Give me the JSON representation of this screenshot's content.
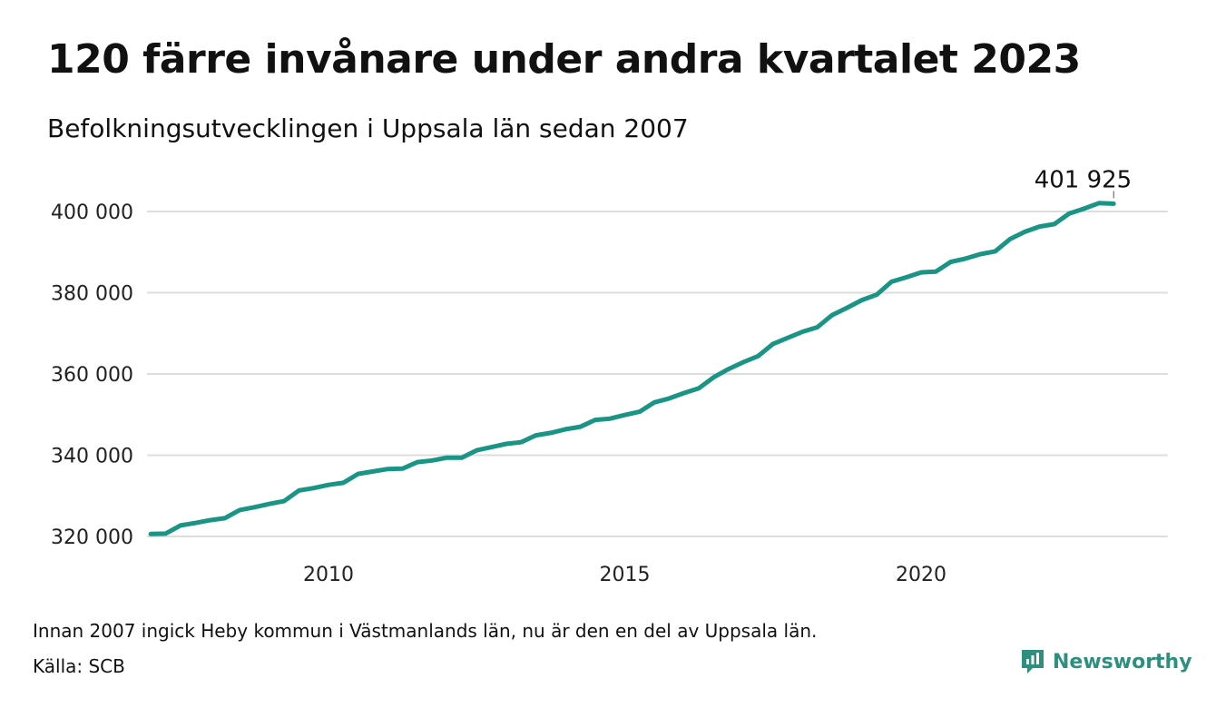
{
  "header": {
    "title": "120 färre invånare under andra kvartalet 2023",
    "subtitle": "Befolkningsutvecklingen i Uppsala län sedan 2007"
  },
  "footer": {
    "note": "Innan 2007 ingick Heby kommun i Västmanlands län, nu är den en del av Uppsala län.",
    "source": "Källa: SCB",
    "brand": "Newsworthy"
  },
  "colors": {
    "line": "#1a9485",
    "grid": "#dddddd",
    "brand": "#2f8f7e"
  },
  "chart_data": {
    "type": "line",
    "title": "120 färre invånare under andra kvartalet 2023",
    "subtitle": "Befolkningsutvecklingen i Uppsala län sedan 2007",
    "xlabel": "",
    "ylabel": "",
    "grid": true,
    "xlim": [
      2007.0,
      2023.5
    ],
    "ylim": [
      320000,
      402000
    ],
    "x_ticks": [
      2010,
      2015,
      2020
    ],
    "x_tick_labels": [
      "2010",
      "2015",
      "2020"
    ],
    "y_ticks": [
      320000,
      340000,
      360000,
      380000,
      400000
    ],
    "y_tick_labels": [
      "320 000",
      "340 000",
      "360 000",
      "380 000",
      "400 000"
    ],
    "annotation": {
      "x": 2023.25,
      "y": 401925,
      "label": "401 925"
    },
    "series": [
      {
        "x": [
          2007.0,
          2007.25,
          2007.5,
          2007.75,
          2008.0,
          2008.25,
          2008.5,
          2008.75,
          2009.0,
          2009.25,
          2009.5,
          2009.75,
          2010.0,
          2010.25,
          2010.5,
          2010.75,
          2011.0,
          2011.25,
          2011.5,
          2011.75,
          2012.0,
          2012.25,
          2012.5,
          2012.75,
          2013.0,
          2013.25,
          2013.5,
          2013.75,
          2014.0,
          2014.25,
          2014.5,
          2014.75,
          2015.0,
          2015.25,
          2015.5,
          2015.75,
          2016.0,
          2016.25,
          2016.5,
          2016.75,
          2017.0,
          2017.25,
          2017.5,
          2017.75,
          2018.0,
          2018.25,
          2018.5,
          2018.75,
          2019.0,
          2019.25,
          2019.5,
          2019.75,
          2020.0,
          2020.25,
          2020.5,
          2020.75,
          2021.0,
          2021.25,
          2021.5,
          2021.75,
          2022.0,
          2022.25,
          2022.5,
          2022.75,
          2023.0,
          2023.25
        ],
        "values": [
          320600,
          320700,
          322700,
          323300,
          324000,
          324500,
          326500,
          327200,
          328000,
          328700,
          331300,
          331900,
          332700,
          333200,
          335400,
          336000,
          336600,
          336700,
          338300,
          338700,
          339400,
          339400,
          341200,
          342000,
          342800,
          343200,
          344900,
          345500,
          346400,
          347000,
          348700,
          349000,
          349900,
          350700,
          353000,
          354000,
          355300,
          356500,
          359200,
          361200,
          362900,
          364400,
          367400,
          368900,
          370400,
          371500,
          374500,
          376300,
          378200,
          379500,
          382700,
          383800,
          385000,
          385200,
          387600,
          388400,
          389500,
          390200,
          393200,
          395000,
          396300,
          396900,
          399500,
          400700,
          402045,
          401925
        ]
      }
    ]
  }
}
